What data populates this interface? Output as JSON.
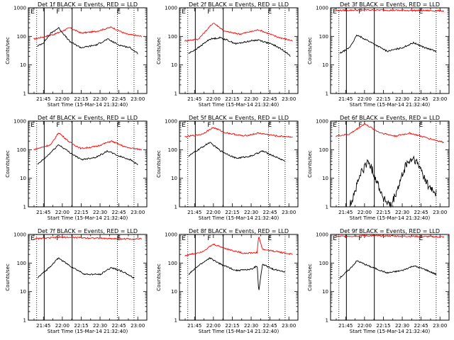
{
  "chart_data": [
    {
      "type": "line",
      "title": "Det 1f BLACK = Events, RED = LLD",
      "ylabel": "Counts/sec",
      "xlabel": "Start Time (15-Mar-14 21:32:40)",
      "yscale": "log",
      "ylim": [
        1,
        1000
      ],
      "yticks": [
        "1",
        "10",
        "100",
        "1000"
      ],
      "xticks": [
        "21:45",
        "22:00",
        "22:15",
        "22:30",
        "22:45",
        "23:00"
      ],
      "flags": [
        "E",
        "F",
        "E"
      ],
      "series": [
        {
          "color": "#ff0000",
          "points": [
            [
              21.62,
              80
            ],
            [
              21.9,
              120
            ],
            [
              22.1,
              200
            ],
            [
              22.25,
              130
            ],
            [
              22.45,
              150
            ],
            [
              22.65,
              210
            ],
            [
              22.85,
              120
            ],
            [
              23.05,
              100
            ]
          ]
        },
        {
          "color": "#000000",
          "points": [
            [
              21.67,
              45
            ],
            [
              21.75,
              60
            ],
            [
              21.85,
              130
            ],
            [
              21.95,
              200
            ],
            [
              22.1,
              65
            ],
            [
              22.25,
              40
            ],
            [
              22.45,
              50
            ],
            [
              22.6,
              80
            ],
            [
              22.75,
              50
            ],
            [
              22.9,
              40
            ],
            [
              23.0,
              25
            ]
          ]
        }
      ]
    },
    {
      "type": "line",
      "title": "Det 2f BLACK = Events, RED = LLD",
      "ylabel": "Counts/sec",
      "xlabel": "Start Time (15-Mar-14 21:32:40)",
      "yscale": "log",
      "ylim": [
        1,
        1000
      ],
      "yticks": [
        "1",
        "10",
        "100",
        "1000"
      ],
      "xticks": [
        "21:45",
        "22:00",
        "22:15",
        "22:30",
        "22:45",
        "23:00"
      ],
      "flags": [
        "E",
        "F",
        "E"
      ],
      "series": [
        {
          "color": "#ff0000",
          "points": [
            [
              21.62,
              70
            ],
            [
              21.8,
              80
            ],
            [
              22.0,
              300
            ],
            [
              22.15,
              150
            ],
            [
              22.35,
              120
            ],
            [
              22.6,
              170
            ],
            [
              22.85,
              95
            ],
            [
              23.05,
              70
            ]
          ]
        },
        {
          "color": "#000000",
          "points": [
            [
              21.67,
              25
            ],
            [
              21.8,
              40
            ],
            [
              21.95,
              80
            ],
            [
              22.1,
              90
            ],
            [
              22.3,
              55
            ],
            [
              22.5,
              70
            ],
            [
              22.6,
              75
            ],
            [
              22.8,
              50
            ],
            [
              22.95,
              30
            ],
            [
              23.02,
              20
            ]
          ]
        }
      ]
    },
    {
      "type": "line",
      "title": "Det 3f BLACK = Events, RED = LLD",
      "ylabel": "Counts/sec",
      "xlabel": "Start Time (15-Mar-14 21:32:40)",
      "yscale": "log",
      "ylim": [
        1,
        1000
      ],
      "yticks": [
        "1",
        "10",
        "100",
        "1000"
      ],
      "xticks": [
        "21:45",
        "22:00",
        "22:15",
        "22:30",
        "22:45",
        "23:00"
      ],
      "flags": [
        "E",
        "F",
        "E"
      ],
      "series": [
        {
          "color": "#ff0000",
          "points": [
            [
              21.62,
              800
            ],
            [
              22.0,
              850
            ],
            [
              22.4,
              820
            ],
            [
              22.8,
              800
            ],
            [
              23.05,
              780
            ]
          ]
        },
        {
          "color": "#000000",
          "points": [
            [
              21.67,
              25
            ],
            [
              21.8,
              40
            ],
            [
              21.9,
              110
            ],
            [
              22.05,
              70
            ],
            [
              22.3,
              30
            ],
            [
              22.5,
              40
            ],
            [
              22.65,
              60
            ],
            [
              22.8,
              40
            ],
            [
              22.95,
              30
            ]
          ]
        }
      ]
    },
    {
      "type": "line",
      "title": "Det 4f BLACK = Events, RED = LLD",
      "ylabel": "Counts/sec",
      "xlabel": "Start Time (15-Mar-14 21:32:40)",
      "yscale": "log",
      "ylim": [
        1,
        1000
      ],
      "yticks": [
        "1",
        "10",
        "100",
        "1000"
      ],
      "xticks": [
        "21:45",
        "22:00",
        "22:15",
        "22:30",
        "22:45",
        "23:00"
      ],
      "flags": [
        "E",
        "F",
        "E"
      ],
      "series": [
        {
          "color": "#ff0000",
          "points": [
            [
              21.62,
              100
            ],
            [
              21.85,
              150
            ],
            [
              21.95,
              400
            ],
            [
              22.1,
              180
            ],
            [
              22.25,
              110
            ],
            [
              22.45,
              130
            ],
            [
              22.65,
              200
            ],
            [
              22.85,
              120
            ],
            [
              23.05,
              100
            ]
          ]
        },
        {
          "color": "#000000",
          "points": [
            [
              21.67,
              30
            ],
            [
              21.8,
              60
            ],
            [
              21.95,
              150
            ],
            [
              22.1,
              80
            ],
            [
              22.25,
              45
            ],
            [
              22.45,
              55
            ],
            [
              22.6,
              90
            ],
            [
              22.75,
              60
            ],
            [
              22.9,
              45
            ],
            [
              23.0,
              30
            ]
          ]
        }
      ]
    },
    {
      "type": "line",
      "title": "Det 5f BLACK = Events, RED = LLD",
      "ylabel": "Counts/sec",
      "xlabel": "Start Time (15-Mar-14 21:32:40)",
      "yscale": "log",
      "ylim": [
        1,
        1000
      ],
      "yticks": [
        "1",
        "10",
        "100",
        "1000"
      ],
      "xticks": [
        "21:45",
        "22:00",
        "22:15",
        "22:30",
        "22:45",
        "23:00"
      ],
      "flags": [
        "E",
        "F",
        "E"
      ],
      "series": [
        {
          "color": "#ff0000",
          "points": [
            [
              21.62,
              280
            ],
            [
              21.85,
              350
            ],
            [
              22.0,
              600
            ],
            [
              22.15,
              400
            ],
            [
              22.4,
              300
            ],
            [
              22.6,
              380
            ],
            [
              22.85,
              300
            ],
            [
              23.05,
              280
            ]
          ]
        },
        {
          "color": "#000000",
          "points": [
            [
              21.67,
              60
            ],
            [
              21.8,
              100
            ],
            [
              21.95,
              180
            ],
            [
              22.1,
              90
            ],
            [
              22.3,
              50
            ],
            [
              22.5,
              60
            ],
            [
              22.65,
              90
            ],
            [
              22.8,
              60
            ],
            [
              22.95,
              40
            ]
          ]
        }
      ]
    },
    {
      "type": "line",
      "title": "Det 6f BLACK = Events, RED = LLD",
      "ylabel": "Counts/sec",
      "xlabel": "Start Time (15-Mar-14 21:32:40)",
      "yscale": "log",
      "ylim": [
        1,
        1000
      ],
      "yticks": [
        "1",
        "10",
        "100",
        "1000"
      ],
      "xticks": [
        "21:45",
        "22:00",
        "22:15",
        "22:30",
        "22:45",
        "23:00"
      ],
      "flags": [
        "E",
        "F",
        "E"
      ],
      "series": [
        {
          "color": "#ff0000",
          "points": [
            [
              21.62,
              300
            ],
            [
              21.8,
              350
            ],
            [
              22.0,
              800
            ],
            [
              22.2,
              400
            ],
            [
              22.4,
              300
            ],
            [
              22.6,
              380
            ],
            [
              22.85,
              250
            ],
            [
              23.05,
              180
            ]
          ]
        },
        {
          "color": "#000000",
          "points": [
            [
              21.8,
              1
            ],
            [
              21.88,
              4
            ],
            [
              21.95,
              15
            ],
            [
              22.05,
              40
            ],
            [
              22.15,
              10
            ],
            [
              22.25,
              2
            ],
            [
              22.35,
              1
            ],
            [
              22.45,
              5
            ],
            [
              22.55,
              30
            ],
            [
              22.65,
              50
            ],
            [
              22.75,
              20
            ],
            [
              22.85,
              5
            ],
            [
              22.95,
              3
            ]
          ]
        }
      ]
    },
    {
      "type": "line",
      "title": "Det 7f BLACK = Events, RED = LLD",
      "ylabel": "Counts/sec",
      "xlabel": "Start Time (15-Mar-14 21:32:40)",
      "yscale": "log",
      "ylim": [
        1,
        1000
      ],
      "yticks": [
        "1",
        "10",
        "100",
        "1000"
      ],
      "xticks": [
        "21:45",
        "22:00",
        "22:15",
        "22:30",
        "22:45",
        "23:00"
      ],
      "flags": [
        "E",
        "F",
        "E"
      ],
      "series": [
        {
          "color": "#ff0000",
          "points": [
            [
              21.62,
              700
            ],
            [
              22.0,
              800
            ],
            [
              22.4,
              750
            ],
            [
              22.8,
              700
            ],
            [
              23.05,
              700
            ]
          ]
        },
        {
          "color": "#000000",
          "points": [
            [
              21.67,
              30
            ],
            [
              21.8,
              60
            ],
            [
              21.95,
              150
            ],
            [
              22.1,
              80
            ],
            [
              22.3,
              40
            ],
            [
              22.5,
              40
            ],
            [
              22.65,
              70
            ],
            [
              22.8,
              50
            ],
            [
              22.95,
              30
            ]
          ]
        }
      ]
    },
    {
      "type": "line",
      "title": "Det 8f BLACK = Events, RED = LLD",
      "ylabel": "Counts/sec",
      "xlabel": "Start Time (15-Mar-14 21:32:40)",
      "yscale": "log",
      "ylim": [
        1,
        1000
      ],
      "yticks": [
        "1",
        "10",
        "100",
        "1000"
      ],
      "xticks": [
        "21:45",
        "22:00",
        "22:15",
        "22:30",
        "22:45",
        "23:00"
      ],
      "flags": [
        "E",
        "F",
        "E"
      ],
      "series": [
        {
          "color": "#ff0000",
          "points": [
            [
              21.62,
              180
            ],
            [
              21.85,
              250
            ],
            [
              22.0,
              450
            ],
            [
              22.2,
              300
            ],
            [
              22.4,
              220
            ],
            [
              22.58,
              230
            ],
            [
              22.6,
              900
            ],
            [
              22.65,
              300
            ],
            [
              22.85,
              250
            ],
            [
              23.05,
              200
            ]
          ]
        },
        {
          "color": "#000000",
          "points": [
            [
              21.67,
              40
            ],
            [
              21.8,
              80
            ],
            [
              21.95,
              150
            ],
            [
              22.1,
              90
            ],
            [
              22.3,
              55
            ],
            [
              22.5,
              60
            ],
            [
              22.58,
              80
            ],
            [
              22.6,
              10
            ],
            [
              22.65,
              90
            ],
            [
              22.8,
              60
            ],
            [
              22.95,
              50
            ]
          ]
        }
      ]
    },
    {
      "type": "line",
      "title": "Det 9f BLACK = Events, RED = LLD",
      "ylabel": "Counts/sec",
      "xlabel": "Start Time (15-Mar-14 21:32:40)",
      "yscale": "log",
      "ylim": [
        1,
        1000
      ],
      "yticks": [
        "1",
        "10",
        "100",
        "1000"
      ],
      "xticks": [
        "21:45",
        "22:00",
        "22:15",
        "22:30",
        "22:45",
        "23:00"
      ],
      "flags": [
        "E",
        "F",
        "E"
      ],
      "series": [
        {
          "color": "#ff0000",
          "points": [
            [
              21.62,
              850
            ],
            [
              22.0,
              900
            ],
            [
              22.4,
              880
            ],
            [
              22.8,
              850
            ],
            [
              23.05,
              820
            ]
          ]
        },
        {
          "color": "#000000",
          "points": [
            [
              21.67,
              30
            ],
            [
              21.8,
              60
            ],
            [
              21.9,
              120
            ],
            [
              22.05,
              80
            ],
            [
              22.3,
              45
            ],
            [
              22.5,
              55
            ],
            [
              22.65,
              80
            ],
            [
              22.8,
              60
            ],
            [
              22.95,
              40
            ]
          ]
        }
      ]
    }
  ]
}
